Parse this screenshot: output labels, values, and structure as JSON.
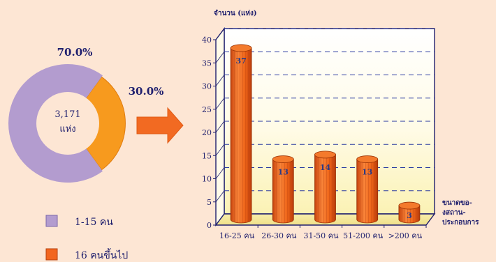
{
  "chart_data": [
    {
      "type": "pie",
      "center_label": [
        "3,171",
        "แห่ง"
      ],
      "slices": [
        {
          "name": "1-15 คน",
          "value": 70.0,
          "label": "70.0%",
          "color": "#b39ccf"
        },
        {
          "name": "16 คนขึ้นไป",
          "value": 30.0,
          "label": "30.0%",
          "color": "#f79a1e"
        }
      ],
      "legend": [
        {
          "label": "1-15 คน",
          "color": "#b39ccf"
        },
        {
          "label": "16 คนขึ้นไป",
          "color": "#f2661f"
        }
      ]
    },
    {
      "type": "bar",
      "ylabel": "จำนวน (แห่ง)",
      "xlabel_lines": [
        "ขนาดขอ-",
        "งสถาน-",
        "ประกอบการ"
      ],
      "categories": [
        "16-25 คน",
        "26-30 คน",
        "31-50 คน",
        "51-200 คน",
        ">200 คน"
      ],
      "values": [
        37,
        13,
        14,
        13,
        3
      ],
      "ylim": [
        0,
        40
      ],
      "yticks": [
        0,
        5,
        10,
        15,
        20,
        25,
        30,
        35,
        40
      ],
      "grid": true,
      "bar_color": "#ef6a1f"
    }
  ],
  "colors": {
    "background": "#fde6d4",
    "arrow": "#f26a22",
    "axis": "#1f1f6e"
  }
}
